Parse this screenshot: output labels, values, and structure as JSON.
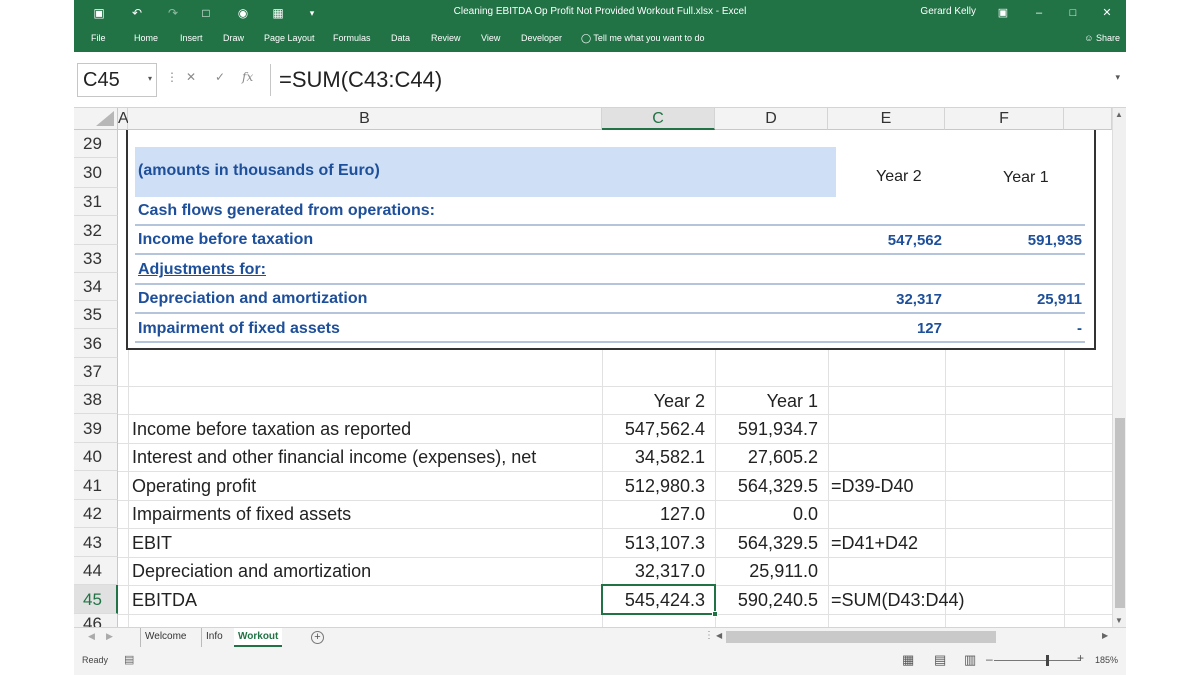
{
  "window": {
    "title": "Cleaning EBITDA Op Profit Not Provided Workout Full.xlsx  -  Excel",
    "user": "Gerard Kelly",
    "accent": "#217346"
  },
  "ribbon": {
    "tabs": [
      "File",
      "Home",
      "Insert",
      "Draw",
      "Page Layout",
      "Formulas",
      "Data",
      "Review",
      "View",
      "Developer"
    ],
    "tell_me": "Tell me what you want to do",
    "share": "Share"
  },
  "formula_bar": {
    "name_box": "C45",
    "formula": "=SUM(C43:C44)"
  },
  "columns": [
    "A",
    "B",
    "C",
    "D",
    "E",
    "F"
  ],
  "rows": [
    "29",
    "30",
    "31",
    "32",
    "33",
    "34",
    "35",
    "36",
    "37",
    "38",
    "39",
    "40",
    "41",
    "42",
    "43",
    "44",
    "45",
    "46"
  ],
  "embedded_table": {
    "header": "(amounts in thousands of Euro)",
    "year2": "Year 2",
    "year1": "Year 1",
    "lines": [
      {
        "label": "Cash flows generated from operations:",
        "y2": "",
        "y1": ""
      },
      {
        "label": "Income before taxation",
        "y2": "547,562",
        "y1": "591,935"
      },
      {
        "label": "Adjustments for:",
        "y2": "",
        "y1": ""
      },
      {
        "label": "Depreciation and amortization",
        "y2": "32,317",
        "y1": "25,911"
      },
      {
        "label": "Impairment of fixed assets",
        "y2": "127",
        "y1": "-"
      }
    ]
  },
  "workout": {
    "header_c": "Year 2",
    "header_d": "Year 1",
    "rows": [
      {
        "row": "39",
        "label": "Income before taxation as reported",
        "c": "547,562.4",
        "d": "591,934.7",
        "e": ""
      },
      {
        "row": "40",
        "label": "Interest and other financial income (expenses), net",
        "c": "34,582.1",
        "d": "27,605.2",
        "e": ""
      },
      {
        "row": "41",
        "label": "Operating profit",
        "c": "512,980.3",
        "d": "564,329.5",
        "e": "=D39-D40"
      },
      {
        "row": "42",
        "label": "Impairments of fixed assets",
        "c": "127.0",
        "d": "0.0",
        "e": ""
      },
      {
        "row": "43",
        "label": "EBIT",
        "c": "513,107.3",
        "d": "564,329.5",
        "e": "=D41+D42"
      },
      {
        "row": "44",
        "label": "Depreciation and amortization",
        "c": "32,317.0",
        "d": "25,911.0",
        "e": ""
      },
      {
        "row": "45",
        "label": "EBITDA",
        "c": "545,424.3",
        "d": "590,240.5",
        "e": "=SUM(D43:D44)"
      }
    ]
  },
  "sheets": {
    "tabs": [
      "Welcome",
      "Info",
      "Workout"
    ],
    "active": "Workout"
  },
  "status": {
    "text": "Ready",
    "zoom": "185%"
  }
}
